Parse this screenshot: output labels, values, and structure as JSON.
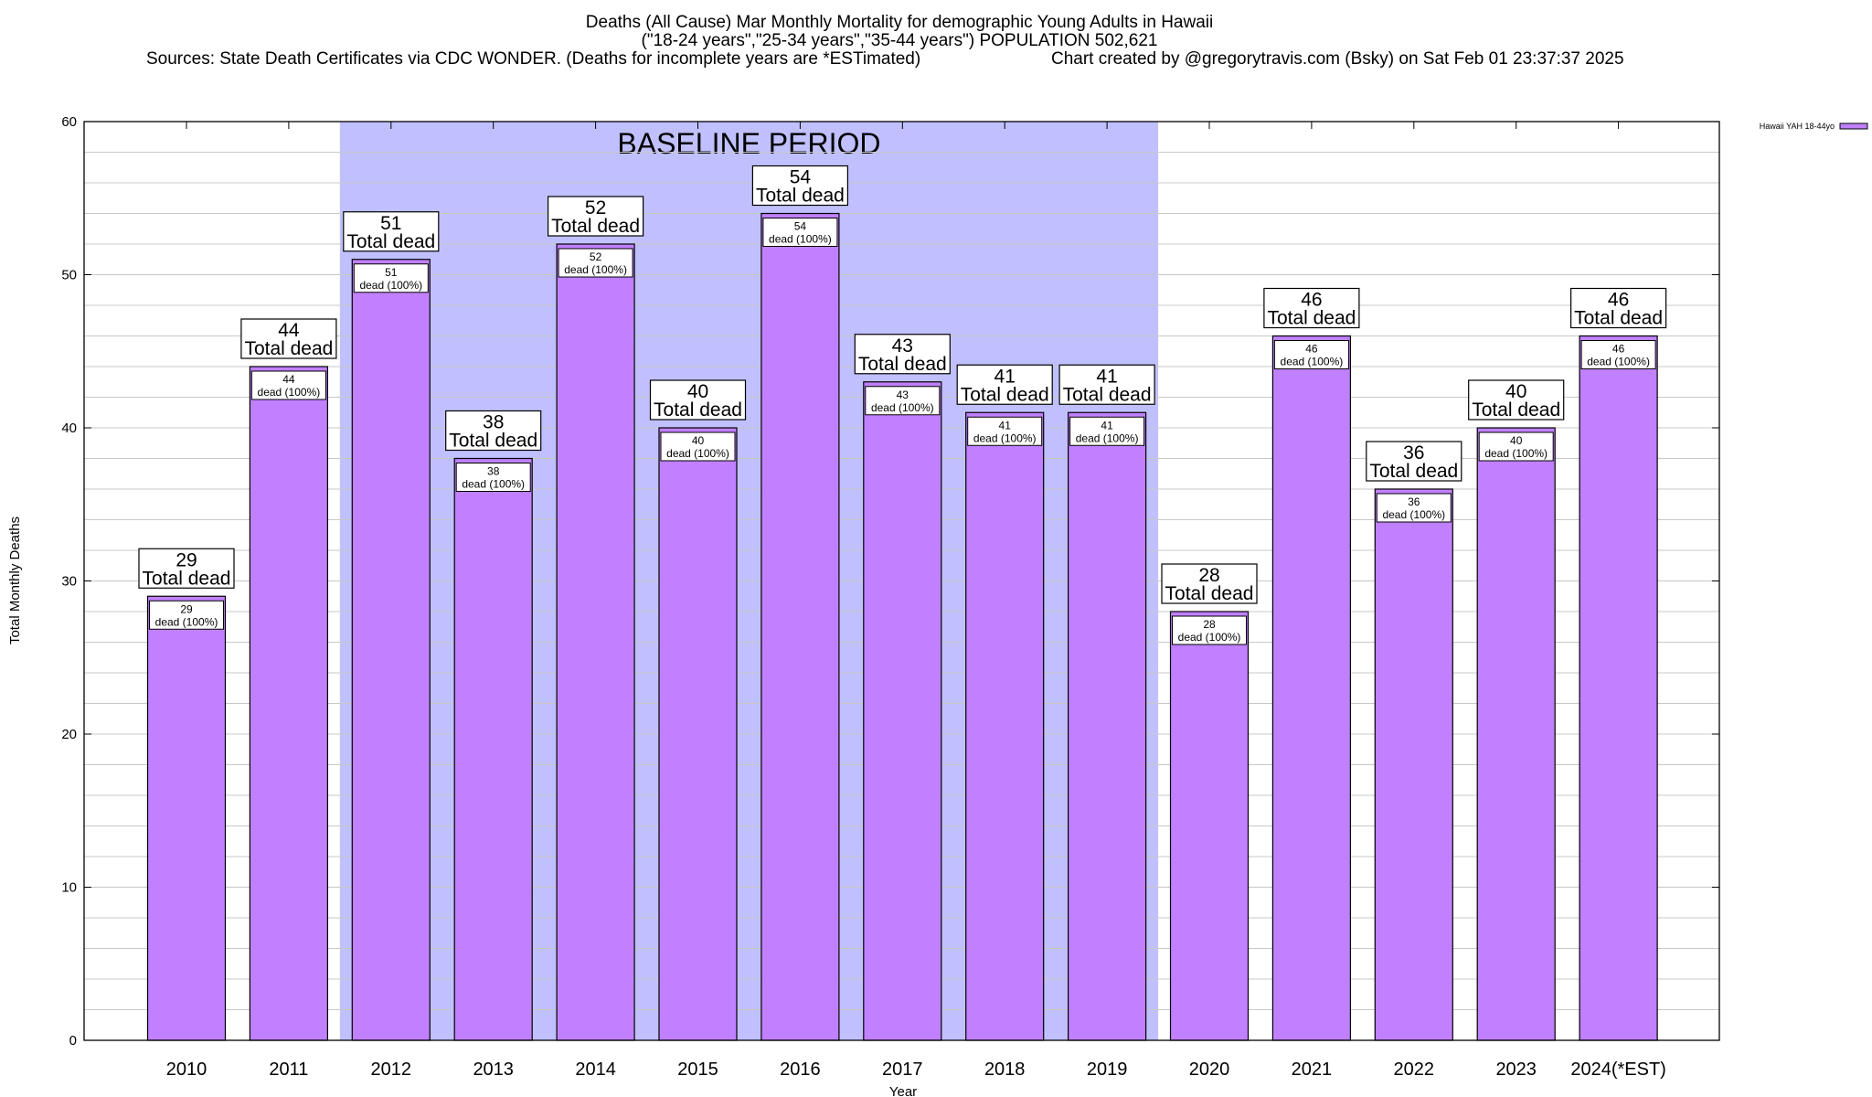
{
  "chart_data": {
    "type": "bar",
    "title": "Deaths (All Cause) Mar Monthly Mortality for demographic Young Adults in Hawaii",
    "subtitle": "(\"18-24 years\",\"25-34 years\",\"35-44 years\") POPULATION 502,621",
    "sources": "Sources: State Death Certificates via CDC WONDER. (Deaths for incomplete years are *ESTimated)",
    "credit": "Chart created by @gregorytravis.com (Bsky) on Sat Feb 01 23:37:37 2025",
    "xlabel": "Year",
    "ylabel": "Total Monthly Deaths",
    "ylim": [
      0,
      60
    ],
    "yticks": [
      0,
      10,
      20,
      30,
      40,
      50,
      60
    ],
    "grid": true,
    "legend_position": "right",
    "categories": [
      "2010",
      "2011",
      "2012",
      "2013",
      "2014",
      "2015",
      "2016",
      "2017",
      "2018",
      "2019",
      "2020",
      "2021",
      "2022",
      "2023",
      "2024(*EST)"
    ],
    "series": [
      {
        "name": "Hawaii YAH 18-44yo",
        "values": [
          29,
          44,
          51,
          38,
          52,
          40,
          54,
          43,
          41,
          41,
          28,
          46,
          36,
          40,
          46
        ]
      }
    ],
    "top_label_suffix": "Total dead",
    "inner_label_suffix": "dead (100%)",
    "baseline": {
      "label": "BASELINE PERIOD",
      "from": "2012",
      "to": "2019"
    },
    "colors": {
      "bar": "#c080ff",
      "baseline": "#c0c0ff",
      "grid": "#c8c8c8"
    }
  }
}
